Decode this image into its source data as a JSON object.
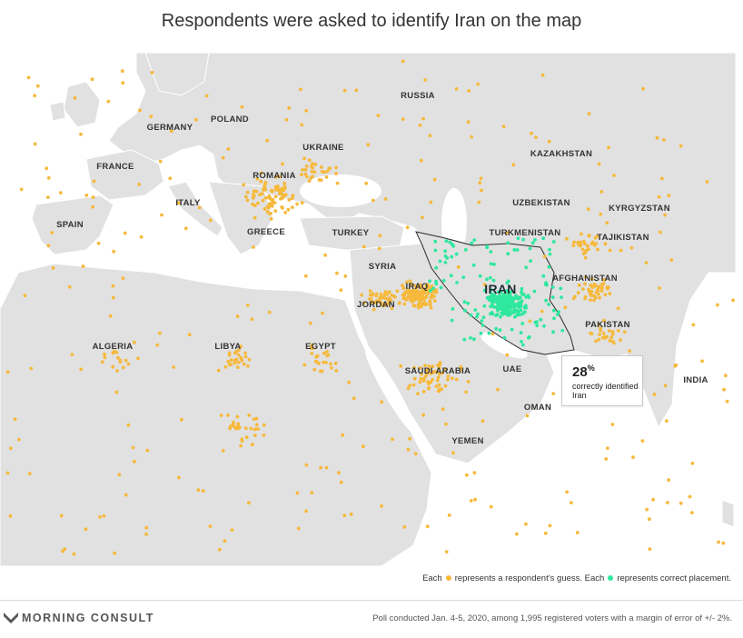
{
  "title": "Respondents were asked to identify Iran on the map",
  "map": {
    "countries": [
      "RUSSIA",
      "POLAND",
      "GERMANY",
      "UKRAINE",
      "FRANCE",
      "ROMANIA",
      "KAZAKHSTAN",
      "ITALY",
      "SPAIN",
      "UZBEKISTAN",
      "KYRGYZSTAN",
      "GREECE",
      "TURKEY",
      "TURKMENISTAN",
      "TAJIKISTAN",
      "SYRIA",
      "IRAN",
      "IRAQ",
      "AFGHANISTAN",
      "JORDAN",
      "PAKISTAN",
      "ALGERIA",
      "LIBYA",
      "EGYPT",
      "SAUDI ARABIA",
      "UAE",
      "INDIA",
      "OMAN",
      "YEMEN"
    ],
    "highlight_country": "IRAN",
    "colors": {
      "land": "#e1e1e1",
      "water": "#ffffff",
      "border": "#ffffff",
      "guess": "#f6b93b",
      "correct": "#2ee89e",
      "iran_outline": "#2b2b2b"
    }
  },
  "callout": {
    "value": "28",
    "unit": "%",
    "text": "correctly identified Iran"
  },
  "legend": {
    "each_1": "Each",
    "guess_text": "represents a respondent’s guess. Each",
    "correct_text": "represents correct placement."
  },
  "footer": {
    "brand": "MORNING CONSULT",
    "note": "Poll conducted Jan. 4-5, 2020, among 1,995 registered voters with a margin of error of +/- 2%."
  },
  "stats": {
    "respondents": 1995,
    "correct_share": 0.28
  }
}
